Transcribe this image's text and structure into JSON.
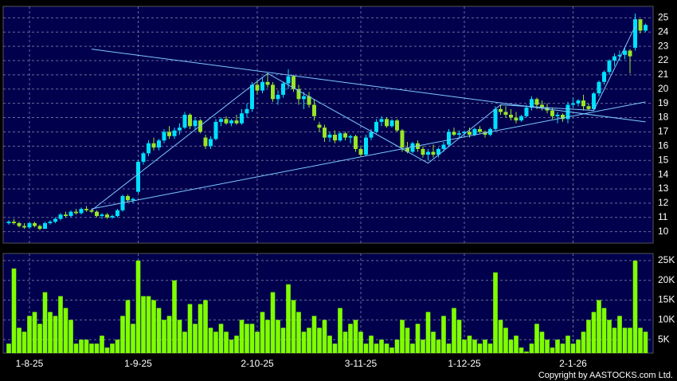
{
  "chart_data": {
    "type": "candlestick",
    "categories": [
      null,
      null,
      null,
      null,
      "1-8-25",
      null,
      null,
      null,
      null,
      null,
      null,
      null,
      null,
      null,
      null,
      null,
      null,
      null,
      null,
      null,
      null,
      null,
      null,
      null,
      null,
      "1-9-25",
      null,
      null,
      null,
      null,
      null,
      null,
      null,
      null,
      null,
      null,
      null,
      null,
      null,
      null,
      null,
      null,
      null,
      null,
      null,
      null,
      null,
      null,
      "2-10-25",
      null,
      null,
      null,
      null,
      null,
      null,
      null,
      null,
      null,
      null,
      null,
      null,
      null,
      null,
      null,
      null,
      null,
      null,
      null,
      "3-11-25",
      null,
      null,
      null,
      null,
      null,
      null,
      null,
      null,
      null,
      null,
      null,
      null,
      null,
      null,
      null,
      null,
      null,
      null,
      null,
      "1-12-25",
      null,
      null,
      null,
      null,
      null,
      null,
      null,
      null,
      null,
      null,
      null,
      null,
      null,
      null,
      null,
      null,
      null,
      null,
      null,
      null,
      "2-1-26",
      null,
      null,
      null,
      null,
      null,
      null,
      null,
      null,
      null,
      null,
      null,
      null,
      null,
      null
    ],
    "open": [
      10.6,
      10.7,
      10.6,
      10.4,
      10.3,
      10.6,
      10.4,
      10.2,
      10.6,
      10.7,
      10.9,
      11.2,
      11.1,
      11.4,
      11.3,
      11.6,
      11.5,
      11.4,
      11.1,
      11.2,
      11.0,
      11.1,
      11.5,
      12.5,
      12.2,
      12.8,
      14.9,
      15.5,
      16.2,
      15.9,
      16.4,
      17.0,
      16.7,
      17.1,
      17.3,
      18.2,
      17.4,
      17.8,
      16.6,
      16.0,
      16.5,
      17.7,
      17.9,
      17.6,
      17.8,
      17.6,
      18.3,
      18.6,
      20.3,
      19.9,
      20.5,
      20.3,
      19.3,
      19.6,
      20.4,
      20.9,
      20.0,
      19.3,
      19.5,
      18.9,
      17.5,
      17.3,
      16.6,
      16.8,
      16.4,
      16.9,
      16.6,
      16.7,
      15.8,
      15.4,
      16.6,
      17.0,
      17.7,
      17.9,
      17.4,
      17.8,
      17.1,
      15.9,
      15.6,
      16.2,
      15.8,
      15.4,
      15.6,
      15.4,
      15.8,
      16.1,
      17.0,
      16.8,
      16.9,
      17.0,
      16.8,
      17.2,
      17.0,
      16.8,
      17.2,
      18.6,
      18.4,
      18.2,
      18.0,
      17.8,
      18.1,
      18.7,
      19.3,
      18.9,
      18.7,
      18.5,
      18.1,
      18.2,
      17.9,
      18.9,
      19.0,
      19.2,
      18.8,
      18.6,
      19.7,
      20.5,
      21.2,
      22.0,
      22.3,
      22.4,
      22.7,
      22.9,
      24.9,
      24.1
    ],
    "high": [
      10.8,
      10.9,
      10.7,
      10.6,
      10.7,
      10.7,
      10.5,
      10.7,
      10.8,
      11.0,
      11.3,
      11.4,
      11.5,
      11.6,
      11.7,
      11.8,
      11.6,
      11.5,
      11.3,
      11.3,
      11.2,
      11.6,
      12.6,
      12.6,
      12.4,
      15.0,
      15.6,
      16.4,
      16.6,
      16.5,
      17.2,
      17.4,
      17.3,
      17.6,
      18.4,
      18.3,
      18.0,
      17.9,
      16.8,
      16.7,
      17.9,
      18.0,
      18.1,
      17.9,
      18.2,
      18.6,
      19.0,
      20.5,
      20.6,
      20.8,
      21.1,
      20.5,
      19.9,
      20.5,
      21.4,
      21.0,
      20.3,
      19.8,
      19.8,
      19.3,
      17.7,
      17.5,
      17.0,
      17.1,
      17.0,
      17.0,
      16.8,
      16.8,
      16.0,
      16.8,
      17.2,
      17.9,
      18.1,
      18.0,
      17.9,
      17.9,
      17.2,
      16.3,
      16.3,
      16.4,
      16.0,
      15.8,
      16.1,
      15.9,
      16.3,
      17.2,
      17.3,
      17.1,
      17.1,
      17.3,
      17.3,
      17.4,
      17.1,
      17.3,
      18.8,
      18.9,
      18.8,
      18.6,
      18.4,
      18.2,
      18.9,
      19.5,
      19.4,
      19.2,
      19.0,
      18.7,
      18.4,
      18.3,
      19.1,
      19.4,
      19.3,
      19.6,
      19.0,
      19.8,
      20.6,
      21.3,
      22.1,
      22.5,
      22.7,
      22.9,
      22.8,
      25.3,
      24.9,
      24.6
    ],
    "low": [
      10.5,
      10.5,
      10.3,
      10.2,
      10.2,
      10.3,
      10.1,
      10.2,
      10.5,
      10.6,
      10.8,
      11.0,
      11.0,
      11.2,
      11.2,
      11.4,
      11.3,
      11.0,
      10.9,
      10.9,
      10.9,
      11.0,
      11.4,
      12.1,
      12.0,
      12.7,
      14.7,
      15.3,
      15.7,
      15.7,
      16.2,
      16.5,
      16.5,
      16.8,
      17.2,
      17.2,
      17.1,
      16.9,
      15.8,
      15.8,
      16.4,
      17.4,
      17.5,
      17.4,
      17.5,
      17.5,
      18.0,
      18.4,
      19.6,
      19.7,
      20.1,
      19.1,
      18.9,
      19.4,
      20.0,
      19.8,
      18.9,
      18.6,
      18.7,
      17.8,
      17.0,
      16.3,
      16.3,
      16.2,
      16.3,
      16.4,
      16.2,
      15.6,
      15.3,
      15.3,
      16.4,
      16.9,
      17.4,
      17.3,
      17.3,
      17.0,
      15.6,
      15.5,
      15.5,
      15.6,
      15.2,
      15.0,
      15.2,
      15.2,
      15.6,
      16.0,
      16.7,
      16.6,
      16.7,
      16.6,
      16.7,
      16.9,
      16.6,
      16.7,
      17.1,
      18.2,
      18.0,
      17.8,
      17.6,
      17.7,
      18.0,
      18.5,
      18.6,
      18.5,
      18.3,
      17.9,
      17.6,
      17.7,
      17.6,
      18.7,
      18.8,
      18.5,
      18.5,
      18.5,
      19.5,
      20.3,
      21.0,
      21.6,
      22.0,
      22.1,
      21.1,
      22.7,
      23.9,
      24.0
    ],
    "close": [
      10.7,
      10.6,
      10.4,
      10.3,
      10.6,
      10.4,
      10.2,
      10.6,
      10.7,
      10.9,
      11.2,
      11.1,
      11.4,
      11.3,
      11.6,
      11.5,
      11.4,
      11.1,
      11.2,
      11.0,
      11.1,
      11.5,
      12.5,
      12.2,
      12.3,
      14.9,
      15.5,
      16.2,
      15.9,
      16.4,
      17.0,
      16.7,
      17.1,
      17.3,
      18.2,
      17.4,
      17.8,
      17.0,
      16.0,
      16.5,
      17.7,
      17.9,
      17.6,
      17.8,
      17.6,
      18.3,
      18.6,
      20.3,
      19.9,
      20.5,
      20.3,
      19.3,
      19.6,
      20.4,
      20.9,
      20.0,
      19.3,
      19.5,
      18.9,
      18.1,
      17.3,
      16.6,
      16.8,
      16.4,
      16.9,
      16.6,
      16.7,
      15.8,
      15.4,
      16.6,
      17.0,
      17.7,
      17.9,
      17.4,
      17.8,
      17.1,
      15.9,
      15.6,
      16.2,
      15.8,
      15.4,
      15.6,
      15.4,
      15.8,
      16.1,
      17.0,
      16.8,
      16.9,
      17.0,
      16.8,
      17.2,
      17.0,
      16.8,
      17.2,
      18.6,
      18.4,
      18.2,
      18.0,
      17.8,
      18.1,
      18.7,
      19.3,
      18.9,
      18.7,
      18.5,
      18.1,
      18.2,
      17.9,
      18.9,
      19.0,
      19.2,
      18.8,
      18.6,
      19.7,
      20.5,
      21.2,
      22.0,
      22.3,
      22.4,
      22.7,
      22.3,
      24.9,
      24.1,
      24.5
    ],
    "volume": [
      4000,
      23000,
      8000,
      7000,
      11000,
      12000,
      9000,
      17000,
      12000,
      11000,
      16000,
      13000,
      10000,
      4000,
      5000,
      5000,
      4000,
      4000,
      6000,
      3000,
      4000,
      5000,
      11000,
      15000,
      9000,
      25000,
      16000,
      16000,
      15000,
      13000,
      10000,
      11000,
      20000,
      10000,
      7000,
      14000,
      9000,
      14000,
      15000,
      8000,
      7000,
      9000,
      7000,
      5000,
      6000,
      10000,
      9000,
      9000,
      7000,
      12000,
      10000,
      17000,
      10000,
      8000,
      19000,
      15000,
      12000,
      7000,
      8000,
      11000,
      8000,
      10000,
      6000,
      4000,
      13000,
      7000,
      9000,
      10000,
      7000,
      4000,
      6000,
      4000,
      5000,
      4000,
      3000,
      5000,
      10000,
      8000,
      4000,
      9000,
      5000,
      12000,
      7000,
      5000,
      11000,
      4000,
      13000,
      10000,
      5000,
      6000,
      5000,
      4000,
      5000,
      4000,
      22000,
      10000,
      8000,
      5000,
      6000,
      3000,
      2000,
      4000,
      9000,
      7000,
      5000,
      3000,
      5000,
      4000,
      6000,
      4000,
      5000,
      7000,
      10000,
      12000,
      15000,
      13000,
      10000,
      8000,
      11000,
      8000,
      8000,
      25000,
      8000,
      7000
    ],
    "ylim": [
      9.2,
      25.8
    ],
    "yticks": [
      10,
      11,
      12,
      13,
      14,
      15,
      16,
      17,
      18,
      19,
      20,
      21,
      22,
      23,
      24,
      25
    ],
    "volume_ylim": [
      1600,
      26800
    ],
    "volume_ticks": [
      {
        "value": 5000,
        "label": "5K"
      },
      {
        "value": 10000,
        "label": "10K"
      },
      {
        "value": 15000,
        "label": "15K"
      },
      {
        "value": 20000,
        "label": "20K"
      },
      {
        "value": 25000,
        "label": "25K"
      }
    ],
    "trendlines": [
      {
        "x": [
          16,
          123
        ],
        "y": [
          22.8,
          17.7
        ]
      },
      {
        "x": [
          16,
          123
        ],
        "y": [
          11.6,
          19.1
        ]
      },
      {
        "x": [
          16,
          50,
          81,
          95,
          113,
          121
        ],
        "y": [
          11.5,
          21.1,
          14.8,
          18.9,
          18.5,
          24.4
        ]
      }
    ],
    "up_color": "#00e0ff",
    "down_color": "#99e526",
    "volume_color": "#80ff00",
    "trendline_color": "#7ec8ff",
    "grid": true,
    "copyright": "Copyright by AASTOCKS.com Ltd."
  }
}
